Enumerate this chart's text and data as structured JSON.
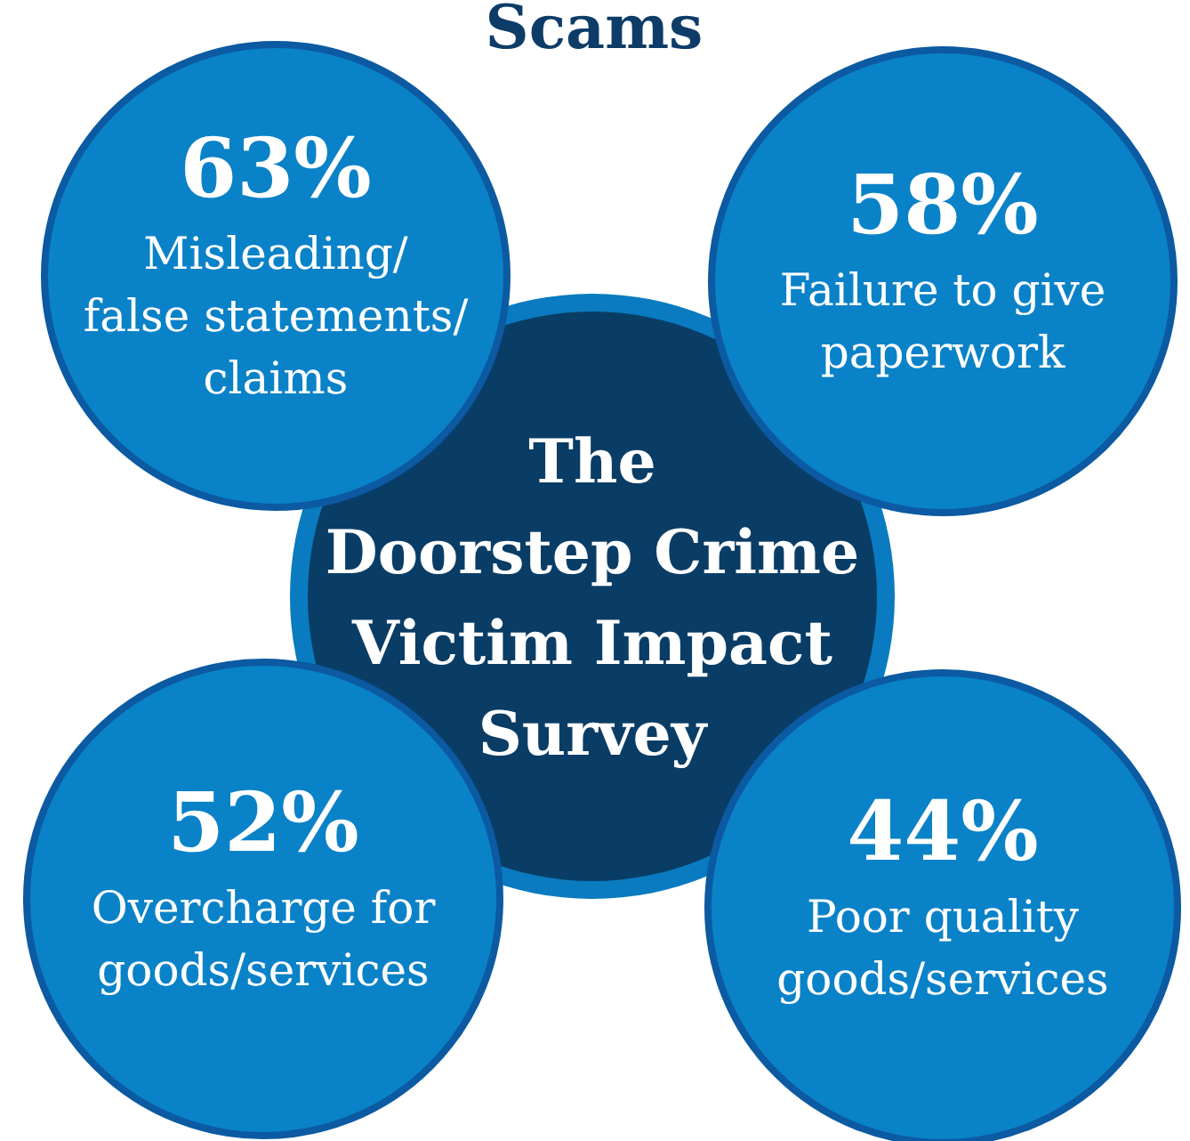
{
  "chart_data": {
    "type": "other",
    "title": "Scams",
    "subtitle": "The\nDoorstep Crime\nVictim Impact\nSurvey",
    "categories": [
      "Misleading/\nfalse statements/\nclaims",
      "Failure to give\npaperwork",
      "Overcharge for\ngoods/services",
      "Poor quality\ngoods/services"
    ],
    "values": [
      63,
      58,
      52,
      44
    ],
    "value_labels": [
      "63%",
      "58%",
      "52%",
      "44%"
    ],
    "colors": [
      "#0a82c8",
      "#0a82c8",
      "#0a82c8",
      "#0a82c8"
    ]
  }
}
